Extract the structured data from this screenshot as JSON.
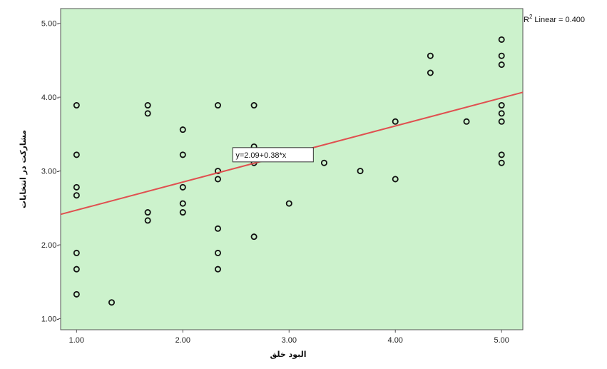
{
  "chart_data": {
    "type": "scatter",
    "title": "",
    "xlabel": "البود خلق",
    "ylabel": "مشارکت در انتخابات",
    "xlim": [
      0.85,
      5.2
    ],
    "ylim": [
      0.85,
      5.2
    ],
    "x_ticks": [
      1.0,
      2.0,
      3.0,
      4.0,
      5.0
    ],
    "y_ticks": [
      1.0,
      2.0,
      3.0,
      4.0,
      5.0
    ],
    "x_tick_labels": [
      "1.00",
      "2.00",
      "3.00",
      "4.00",
      "5.00"
    ],
    "y_tick_labels": [
      "1.00-",
      "2.00-",
      "3.00-",
      "4.00-",
      "5.00-"
    ],
    "grid": false,
    "background_color": "#ccf2cc",
    "marker_color": "#111111",
    "fit_line_color": "#e05050",
    "fit_line": {
      "intercept": 2.09,
      "slope": 0.38,
      "label": "y=2.09+0.38*x"
    },
    "r2_label": "Linear = 0.400",
    "r2_prefix": "R",
    "r2_sup": "2",
    "points": [
      {
        "x": 1.0,
        "y": 3.89
      },
      {
        "x": 1.0,
        "y": 3.22
      },
      {
        "x": 1.0,
        "y": 2.78
      },
      {
        "x": 1.0,
        "y": 2.67
      },
      {
        "x": 1.0,
        "y": 1.89
      },
      {
        "x": 1.0,
        "y": 1.67
      },
      {
        "x": 1.0,
        "y": 1.33
      },
      {
        "x": 1.33,
        "y": 1.22
      },
      {
        "x": 1.67,
        "y": 3.89
      },
      {
        "x": 1.67,
        "y": 3.78
      },
      {
        "x": 1.67,
        "y": 2.44
      },
      {
        "x": 1.67,
        "y": 2.33
      },
      {
        "x": 2.0,
        "y": 3.56
      },
      {
        "x": 2.0,
        "y": 3.22
      },
      {
        "x": 2.0,
        "y": 2.78
      },
      {
        "x": 2.0,
        "y": 2.56
      },
      {
        "x": 2.0,
        "y": 2.44
      },
      {
        "x": 2.33,
        "y": 3.89
      },
      {
        "x": 2.33,
        "y": 3.0
      },
      {
        "x": 2.33,
        "y": 2.89
      },
      {
        "x": 2.33,
        "y": 2.22
      },
      {
        "x": 2.33,
        "y": 1.89
      },
      {
        "x": 2.33,
        "y": 1.67
      },
      {
        "x": 2.67,
        "y": 3.89
      },
      {
        "x": 2.67,
        "y": 3.33
      },
      {
        "x": 2.67,
        "y": 3.11
      },
      {
        "x": 2.67,
        "y": 2.11
      },
      {
        "x": 3.0,
        "y": 2.56
      },
      {
        "x": 3.33,
        "y": 3.11
      },
      {
        "x": 3.67,
        "y": 3.0
      },
      {
        "x": 4.0,
        "y": 3.67
      },
      {
        "x": 4.0,
        "y": 2.89
      },
      {
        "x": 4.33,
        "y": 4.56
      },
      {
        "x": 4.33,
        "y": 4.33
      },
      {
        "x": 4.67,
        "y": 3.67
      },
      {
        "x": 5.0,
        "y": 4.78
      },
      {
        "x": 5.0,
        "y": 4.56
      },
      {
        "x": 5.0,
        "y": 4.44
      },
      {
        "x": 5.0,
        "y": 3.89
      },
      {
        "x": 5.0,
        "y": 3.78
      },
      {
        "x": 5.0,
        "y": 3.67
      },
      {
        "x": 5.0,
        "y": 3.22
      },
      {
        "x": 5.0,
        "y": 3.11
      }
    ]
  }
}
